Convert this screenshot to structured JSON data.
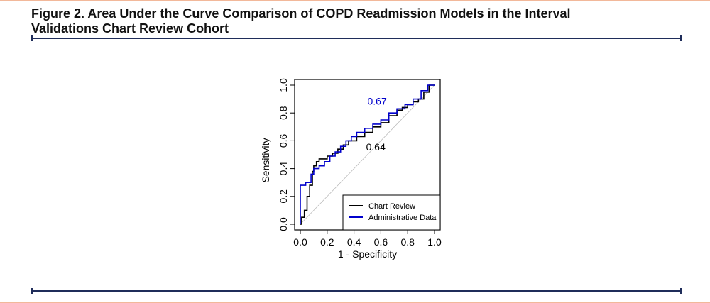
{
  "figure": {
    "title_line1": "Figure 2. Area Under the Curve Comparison of COPD Readmission Models in the Interval",
    "title_line2": "Validations Chart Review Cohort"
  },
  "chart_data": {
    "type": "line",
    "xlabel": "1 - Specificity",
    "ylabel": "Sensitivity",
    "xlim": [
      0,
      1
    ],
    "ylim": [
      0,
      1
    ],
    "xticks": [
      "0.0",
      "0.2",
      "0.4",
      "0.6",
      "0.8",
      "1.0"
    ],
    "yticks": [
      "0.0",
      "0.2",
      "0.4",
      "0.6",
      "0.8",
      "1.0"
    ],
    "grid": false,
    "legend_position": "bottom-right",
    "reference_line": true,
    "colors": {
      "chart_review": "#000000",
      "administrative_data": "#0000cc",
      "reference": "#bbbbbb"
    },
    "series": [
      {
        "name": "Chart Review",
        "color": "#000000",
        "x": [
          0.0,
          0.01,
          0.01,
          0.03,
          0.03,
          0.05,
          0.05,
          0.07,
          0.07,
          0.09,
          0.09,
          0.1,
          0.1,
          0.12,
          0.12,
          0.14,
          0.14,
          0.16,
          0.16,
          0.2,
          0.2,
          0.24,
          0.24,
          0.28,
          0.28,
          0.32,
          0.32,
          0.36,
          0.36,
          0.42,
          0.42,
          0.48,
          0.48,
          0.54,
          0.54,
          0.6,
          0.6,
          0.66,
          0.66,
          0.72,
          0.72,
          0.76,
          0.76,
          0.8,
          0.8,
          0.84,
          0.84,
          0.88,
          0.88,
          0.92,
          0.92,
          0.96,
          0.96,
          1.0
        ],
        "y": [
          0.0,
          0.0,
          0.05,
          0.05,
          0.1,
          0.1,
          0.2,
          0.2,
          0.28,
          0.28,
          0.38,
          0.38,
          0.42,
          0.42,
          0.45,
          0.45,
          0.47,
          0.47,
          0.47,
          0.47,
          0.49,
          0.49,
          0.51,
          0.51,
          0.54,
          0.54,
          0.57,
          0.57,
          0.6,
          0.6,
          0.63,
          0.63,
          0.66,
          0.66,
          0.7,
          0.7,
          0.73,
          0.73,
          0.78,
          0.78,
          0.82,
          0.82,
          0.84,
          0.84,
          0.86,
          0.86,
          0.88,
          0.88,
          0.9,
          0.9,
          0.95,
          0.95,
          1.0,
          1.0
        ],
        "auc_label": "0.64"
      },
      {
        "name": "Administrative Data",
        "color": "#0000cc",
        "x": [
          0.0,
          0.0,
          0.04,
          0.04,
          0.08,
          0.08,
          0.1,
          0.1,
          0.14,
          0.14,
          0.18,
          0.18,
          0.22,
          0.22,
          0.26,
          0.26,
          0.3,
          0.3,
          0.34,
          0.34,
          0.38,
          0.38,
          0.42,
          0.42,
          0.48,
          0.48,
          0.54,
          0.54,
          0.6,
          0.6,
          0.66,
          0.66,
          0.72,
          0.72,
          0.78,
          0.78,
          0.84,
          0.84,
          0.9,
          0.9,
          0.95,
          0.95,
          1.0
        ],
        "y": [
          0.0,
          0.28,
          0.28,
          0.3,
          0.3,
          0.36,
          0.36,
          0.4,
          0.4,
          0.42,
          0.42,
          0.45,
          0.45,
          0.49,
          0.49,
          0.52,
          0.52,
          0.56,
          0.56,
          0.6,
          0.6,
          0.63,
          0.63,
          0.66,
          0.66,
          0.69,
          0.69,
          0.72,
          0.72,
          0.75,
          0.75,
          0.8,
          0.8,
          0.83,
          0.83,
          0.86,
          0.86,
          0.9,
          0.9,
          0.96,
          0.96,
          1.0,
          1.0
        ],
        "auc_label": "0.67"
      }
    ]
  }
}
